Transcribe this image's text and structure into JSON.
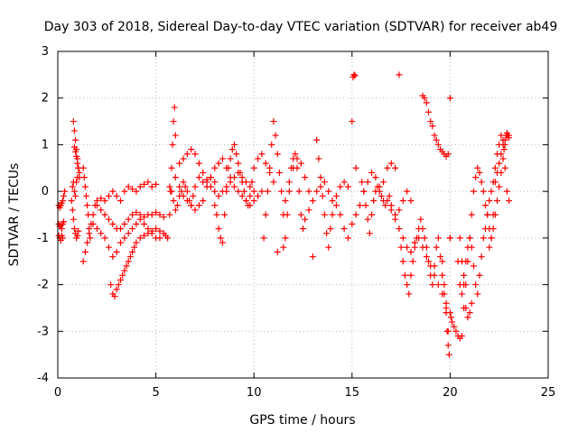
{
  "chart_data": {
    "type": "scatter",
    "title": "Day 303 of 2018, Sidereal Day-to-day VTEC variation (SDTVAR) for receiver ab49",
    "xlabel": "GPS time / hours",
    "ylabel": "SDTVAR / TECUs",
    "xlim": [
      0,
      25
    ],
    "ylim": [
      -4,
      3
    ],
    "xticks": [
      0,
      5,
      10,
      15,
      20,
      25
    ],
    "yticks": [
      -4,
      -3,
      -2,
      -1,
      0,
      1,
      2,
      3
    ],
    "grid": true,
    "marker": "+",
    "color": "#ff0000",
    "series": [
      {
        "name": "SDTVAR",
        "x": [
          0.05,
          0.1,
          0.15,
          0.2,
          0.25,
          0.3,
          0.35,
          0.05,
          0.1,
          0.15,
          0.2,
          0.25,
          0.3,
          0.05,
          0.1,
          0.15,
          0.2,
          0.25,
          0.7,
          0.75,
          0.8,
          0.85,
          0.9,
          0.95,
          1.0,
          1.05,
          0.8,
          0.85,
          0.9,
          0.95,
          1.0,
          1.05,
          1.1,
          0.85,
          0.9,
          0.95,
          1.0,
          1.05,
          1.1,
          0.75,
          0.8,
          0.85,
          0.9,
          0.95,
          1.0,
          1.3,
          1.35,
          1.4,
          1.45,
          1.5,
          1.55,
          1.6,
          1.65,
          1.3,
          1.4,
          1.5,
          1.6,
          1.7,
          1.8,
          1.9,
          2.0,
          2.2,
          2.4,
          2.6,
          2.8,
          3.0,
          3.2,
          3.4,
          3.6,
          3.8,
          4.0,
          4.2,
          4.4,
          4.6,
          4.8,
          5.0,
          1.8,
          2.0,
          2.2,
          2.4,
          2.6,
          2.8,
          3.0,
          3.2,
          3.4,
          3.6,
          3.8,
          4.0,
          4.2,
          4.4,
          4.6,
          4.8,
          5.0,
          5.2,
          2.0,
          2.2,
          2.4,
          2.6,
          2.8,
          3.0,
          3.2,
          3.4,
          3.6,
          3.8,
          4.0,
          4.2,
          4.4,
          4.6,
          4.8,
          5.0,
          5.2,
          5.4,
          2.7,
          2.8,
          2.9,
          3.0,
          3.1,
          3.2,
          3.3,
          3.4,
          3.5,
          3.6,
          3.7,
          3.8,
          3.9,
          4.0,
          4.2,
          4.4,
          4.6,
          4.8,
          5.0,
          5.2,
          5.4,
          5.5,
          5.6,
          5.7,
          5.75,
          5.8,
          5.85,
          5.9,
          5.95,
          6.0,
          5.7,
          5.8,
          5.9,
          6.0,
          6.1,
          6.2,
          6.3,
          6.4,
          6.5,
          6.6,
          6.7,
          6.8,
          6.9,
          7.0,
          7.2,
          7.4,
          7.6,
          7.8,
          8.0,
          6.0,
          6.2,
          6.4,
          6.6,
          6.8,
          7.0,
          7.2,
          7.4,
          7.6,
          7.8,
          8.0,
          8.2,
          8.4,
          8.6,
          8.8,
          9.0,
          9.2,
          9.4,
          9.6,
          9.8,
          10.0,
          6.2,
          6.4,
          6.6,
          6.8,
          7.0,
          7.2,
          7.4,
          7.6,
          7.8,
          8.0,
          8.2,
          8.4,
          8.6,
          8.8,
          9.0,
          9.2,
          9.4,
          9.6,
          9.8,
          10.0,
          10.2,
          10.4,
          8.0,
          8.1,
          8.2,
          8.3,
          8.4,
          8.5,
          8.6,
          8.7,
          8.8,
          8.9,
          9.0,
          9.1,
          9.2,
          9.3,
          9.4,
          9.5,
          9.6,
          9.7,
          9.8,
          9.9,
          10.0,
          10.2,
          10.4,
          10.6,
          10.8,
          11.0,
          11.2,
          10.5,
          10.6,
          10.7,
          10.8,
          10.9,
          11.0,
          11.1,
          11.2,
          11.3,
          11.4,
          11.5,
          11.6,
          11.8,
          12.0,
          12.2,
          12.4,
          12.6,
          12.8,
          13.0,
          11.5,
          11.6,
          11.7,
          11.8,
          11.9,
          12.0,
          12.1,
          12.2,
          12.3,
          12.4,
          12.5,
          12.6,
          12.8,
          13.0,
          13.2,
          13.4,
          13.6,
          13.8,
          14.0,
          14.2,
          14.4,
          14.6,
          14.8,
          15.0,
          13.2,
          13.3,
          13.4,
          13.5,
          13.6,
          13.7,
          13.8,
          13.9,
          14.0,
          14.2,
          14.4,
          14.6,
          14.8,
          15.0,
          15.2,
          15.4,
          15.6,
          15.8,
          16.0,
          16.2,
          16.4,
          16.6,
          16.8,
          17.0,
          17.2,
          17.4,
          15.05,
          15.1,
          15.15,
          15.2,
          15.5,
          15.6,
          15.7,
          15.8,
          15.9,
          16.0,
          16.1,
          16.2,
          16.3,
          16.4,
          16.5,
          16.6,
          16.7,
          16.8,
          16.9,
          17.0,
          17.2,
          17.4,
          17.6,
          17.8,
          18.0,
          17.0,
          17.2,
          17.4,
          17.6,
          17.8,
          18.0,
          18.2,
          18.4,
          18.6,
          18.8,
          19.0,
          19.2,
          19.4,
          19.6,
          19.8,
          20.0,
          17.5,
          17.6,
          17.7,
          17.8,
          17.9,
          18.0,
          18.1,
          18.2,
          18.3,
          18.4,
          18.5,
          18.6,
          18.7,
          18.8,
          18.9,
          19.0,
          19.1,
          19.2,
          19.3,
          19.4,
          19.5,
          19.6,
          19.7,
          19.8,
          19.9,
          20.0,
          18.6,
          18.7,
          18.8,
          18.9,
          19.0,
          19.1,
          19.2,
          19.3,
          19.4,
          19.5,
          19.6,
          19.7,
          19.8,
          19.9,
          20.0,
          19.6,
          19.7,
          19.8,
          19.85,
          19.9,
          19.95,
          20.0,
          20.05,
          20.1,
          20.2,
          20.3,
          20.4,
          20.5,
          20.6,
          20.7,
          20.8,
          20.9,
          21.0,
          21.1,
          21.2,
          21.3,
          21.4,
          21.5,
          21.6,
          21.7,
          21.8,
          21.9,
          22.0,
          22.1,
          22.2,
          20.4,
          20.5,
          20.6,
          20.7,
          20.8,
          20.9,
          21.0,
          21.1,
          21.2,
          21.3,
          21.4,
          21.5,
          21.6,
          21.7,
          21.8,
          21.9,
          22.0,
          22.1,
          22.2,
          22.3,
          22.4,
          22.5,
          22.6,
          22.7,
          22.8,
          22.9,
          23.0,
          20.5,
          20.6,
          20.7,
          20.8,
          20.9,
          21.0,
          21.1,
          22.0,
          22.1,
          22.2,
          22.3,
          22.4,
          22.5,
          22.6,
          22.7,
          22.75,
          22.8,
          22.85,
          22.9,
          22.95,
          23.0,
          22.3,
          22.4,
          22.5,
          22.6,
          22.7,
          22.8,
          22.9,
          23.0
        ],
        "y": [
          -0.3,
          -0.35,
          -0.3,
          -0.25,
          -0.2,
          -0.1,
          0.0,
          -0.7,
          -0.75,
          -0.72,
          -0.8,
          -0.7,
          -0.65,
          -0.95,
          -1.0,
          -1.05,
          -0.95,
          -1.0,
          -0.2,
          -0.4,
          -0.6,
          -0.8,
          -0.9,
          -1.0,
          -0.95,
          -0.85,
          1.5,
          1.3,
          1.1,
          0.9,
          0.7,
          0.5,
          0.3,
          0.95,
          0.85,
          0.75,
          0.6,
          0.5,
          0.4,
          0.1,
          0.2,
          0.0,
          -0.1,
          0.2,
          0.3,
          0.5,
          0.3,
          0.1,
          -0.1,
          -0.3,
          -0.5,
          -0.8,
          -1.0,
          -1.5,
          -1.3,
          -1.1,
          -0.9,
          -0.7,
          -0.5,
          -0.3,
          -0.2,
          -0.15,
          -0.2,
          -0.1,
          0.0,
          -0.1,
          -0.2,
          0.0,
          0.1,
          0.05,
          0.0,
          0.1,
          0.15,
          0.2,
          0.1,
          0.15,
          -0.7,
          -0.8,
          -0.9,
          -1.0,
          -1.2,
          -1.4,
          -1.3,
          -1.1,
          -1.0,
          -0.9,
          -0.8,
          -0.7,
          -0.6,
          -0.7,
          -0.8,
          -0.9,
          -1.0,
          -1.0,
          -0.3,
          -0.4,
          -0.5,
          -0.6,
          -0.7,
          -0.8,
          -0.8,
          -0.7,
          -0.6,
          -0.5,
          -0.45,
          -0.5,
          -0.55,
          -0.5,
          -0.5,
          -0.45,
          -0.5,
          -0.55,
          -2.0,
          -2.2,
          -2.25,
          -2.1,
          -2.0,
          -1.9,
          -1.8,
          -1.7,
          -1.6,
          -1.5,
          -1.4,
          -1.3,
          -1.2,
          -1.1,
          -1.0,
          -0.95,
          -0.9,
          -0.85,
          -0.8,
          -0.85,
          -0.9,
          -0.95,
          -1.0,
          -0.5,
          0.0,
          0.5,
          1.0,
          1.5,
          1.8,
          1.2,
          0.1,
          0.0,
          -0.2,
          -0.4,
          -0.3,
          -0.1,
          0.0,
          0.2,
          0.1,
          0.0,
          -0.2,
          -0.3,
          -0.1,
          0.1,
          0.3,
          0.2,
          0.25,
          0.3,
          0.2,
          0.3,
          0.6,
          0.7,
          0.8,
          0.9,
          0.8,
          0.6,
          0.4,
          0.2,
          0.1,
          0.0,
          -0.1,
          0.0,
          0.1,
          0.2,
          0.3,
          0.4,
          0.3,
          0.2,
          0.1,
          0.0,
          0.1,
          -0.1,
          -0.2,
          -0.3,
          -0.4,
          -0.3,
          -0.2,
          0.1,
          0.3,
          0.5,
          0.6,
          0.7,
          0.5,
          0.3,
          0.1,
          0.0,
          -0.1,
          -0.2,
          -0.3,
          -0.2,
          -0.1,
          0.0,
          -0.3,
          -0.5,
          -0.8,
          -1.0,
          -1.1,
          -0.5,
          0.0,
          0.5,
          0.7,
          0.9,
          1.0,
          0.8,
          0.6,
          0.4,
          0.2,
          0.0,
          -0.2,
          -0.3,
          -0.1,
          0.2,
          0.5,
          0.7,
          0.8,
          0.6,
          0.4,
          0.2,
          -1.3,
          -1.0,
          -0.5,
          0.0,
          0.5,
          1.0,
          1.5,
          1.2,
          0.8,
          0.4,
          0.0,
          -0.5,
          -0.2,
          0.2,
          0.5,
          0.7,
          0.6,
          0.3,
          0.0,
          -1.4,
          -1.2,
          -1.0,
          -0.5,
          0.0,
          0.5,
          0.7,
          0.8,
          0.5,
          0.0,
          -0.5,
          -0.8,
          -0.6,
          -0.4,
          -0.2,
          0.0,
          0.1,
          0.2,
          0.0,
          -0.2,
          -0.1,
          0.1,
          0.2,
          0.1,
          1.5,
          1.1,
          0.7,
          0.3,
          -0.1,
          -0.5,
          -0.9,
          -1.2,
          -0.8,
          -0.5,
          -0.3,
          -0.5,
          -0.8,
          -1.0,
          -0.7,
          -0.5,
          -0.3,
          0.0,
          0.2,
          0.4,
          0.3,
          0.1,
          0.2,
          0.5,
          0.6,
          0.5,
          2.5,
          2.45,
          2.5,
          2.48,
          0.5,
          0.2,
          0.0,
          -0.3,
          -0.6,
          -0.9,
          -0.5,
          -0.2,
          0.0,
          0.1,
          0.0,
          -0.1,
          -0.2,
          -0.3,
          -0.2,
          -0.1,
          -0.3,
          -0.5,
          -0.4,
          -0.2,
          0.0,
          -0.2,
          -0.4,
          -0.6,
          -0.8,
          -1.0,
          -1.2,
          -1.3,
          -1.1,
          -1.0,
          -1.2,
          -1.4,
          -1.6,
          -1.8,
          -2.0,
          -2.2,
          -2.4,
          -1.0,
          -1.2,
          -1.5,
          -1.8,
          -2.0,
          -2.2,
          -1.8,
          -1.5,
          -1.2,
          -1.0,
          -0.8,
          -0.6,
          -0.8,
          -1.0,
          -1.2,
          -1.5,
          -1.8,
          -2.0,
          -1.6,
          -1.2,
          -1.0,
          -1.4,
          -1.8,
          -2.2,
          -2.6,
          -3.0,
          2.0,
          2.05,
          2.0,
          1.9,
          1.7,
          1.5,
          1.4,
          1.2,
          1.1,
          1.0,
          0.9,
          0.85,
          0.8,
          0.75,
          0.8,
          -1.0,
          -1.5,
          -2.0,
          -2.5,
          -3.0,
          -3.3,
          -3.5,
          -2.6,
          -2.7,
          -2.8,
          -2.9,
          -3.0,
          -3.1,
          -3.15,
          -3.1,
          -2.5,
          -2.0,
          -1.5,
          -1.0,
          -0.5,
          0.0,
          0.3,
          0.5,
          0.4,
          0.2,
          0.0,
          -0.3,
          -0.5,
          -0.8,
          -1.0,
          -0.5,
          -1.5,
          -2.0,
          -2.2,
          -1.8,
          -1.5,
          -1.2,
          -1.0,
          -1.2,
          -1.6,
          -2.0,
          -2.2,
          -1.8,
          -1.4,
          -1.0,
          -0.8,
          -0.5,
          -0.2,
          0.0,
          0.2,
          0.5,
          0.8,
          1.0,
          1.2,
          1.1,
          1.0,
          1.2,
          1.2,
          -1.0,
          -1.5,
          -2.0,
          -2.5,
          -2.7,
          -2.6,
          -2.4,
          -1.2,
          -1.0,
          -0.8,
          -0.5,
          -0.2,
          0.1,
          0.4,
          0.7,
          0.9,
          1.1,
          1.2,
          1.25,
          1.2,
          1.15,
          0.2,
          0.4,
          0.6,
          0.8,
          1.0,
          0.5,
          0.0,
          -0.2
        ]
      }
    ]
  }
}
